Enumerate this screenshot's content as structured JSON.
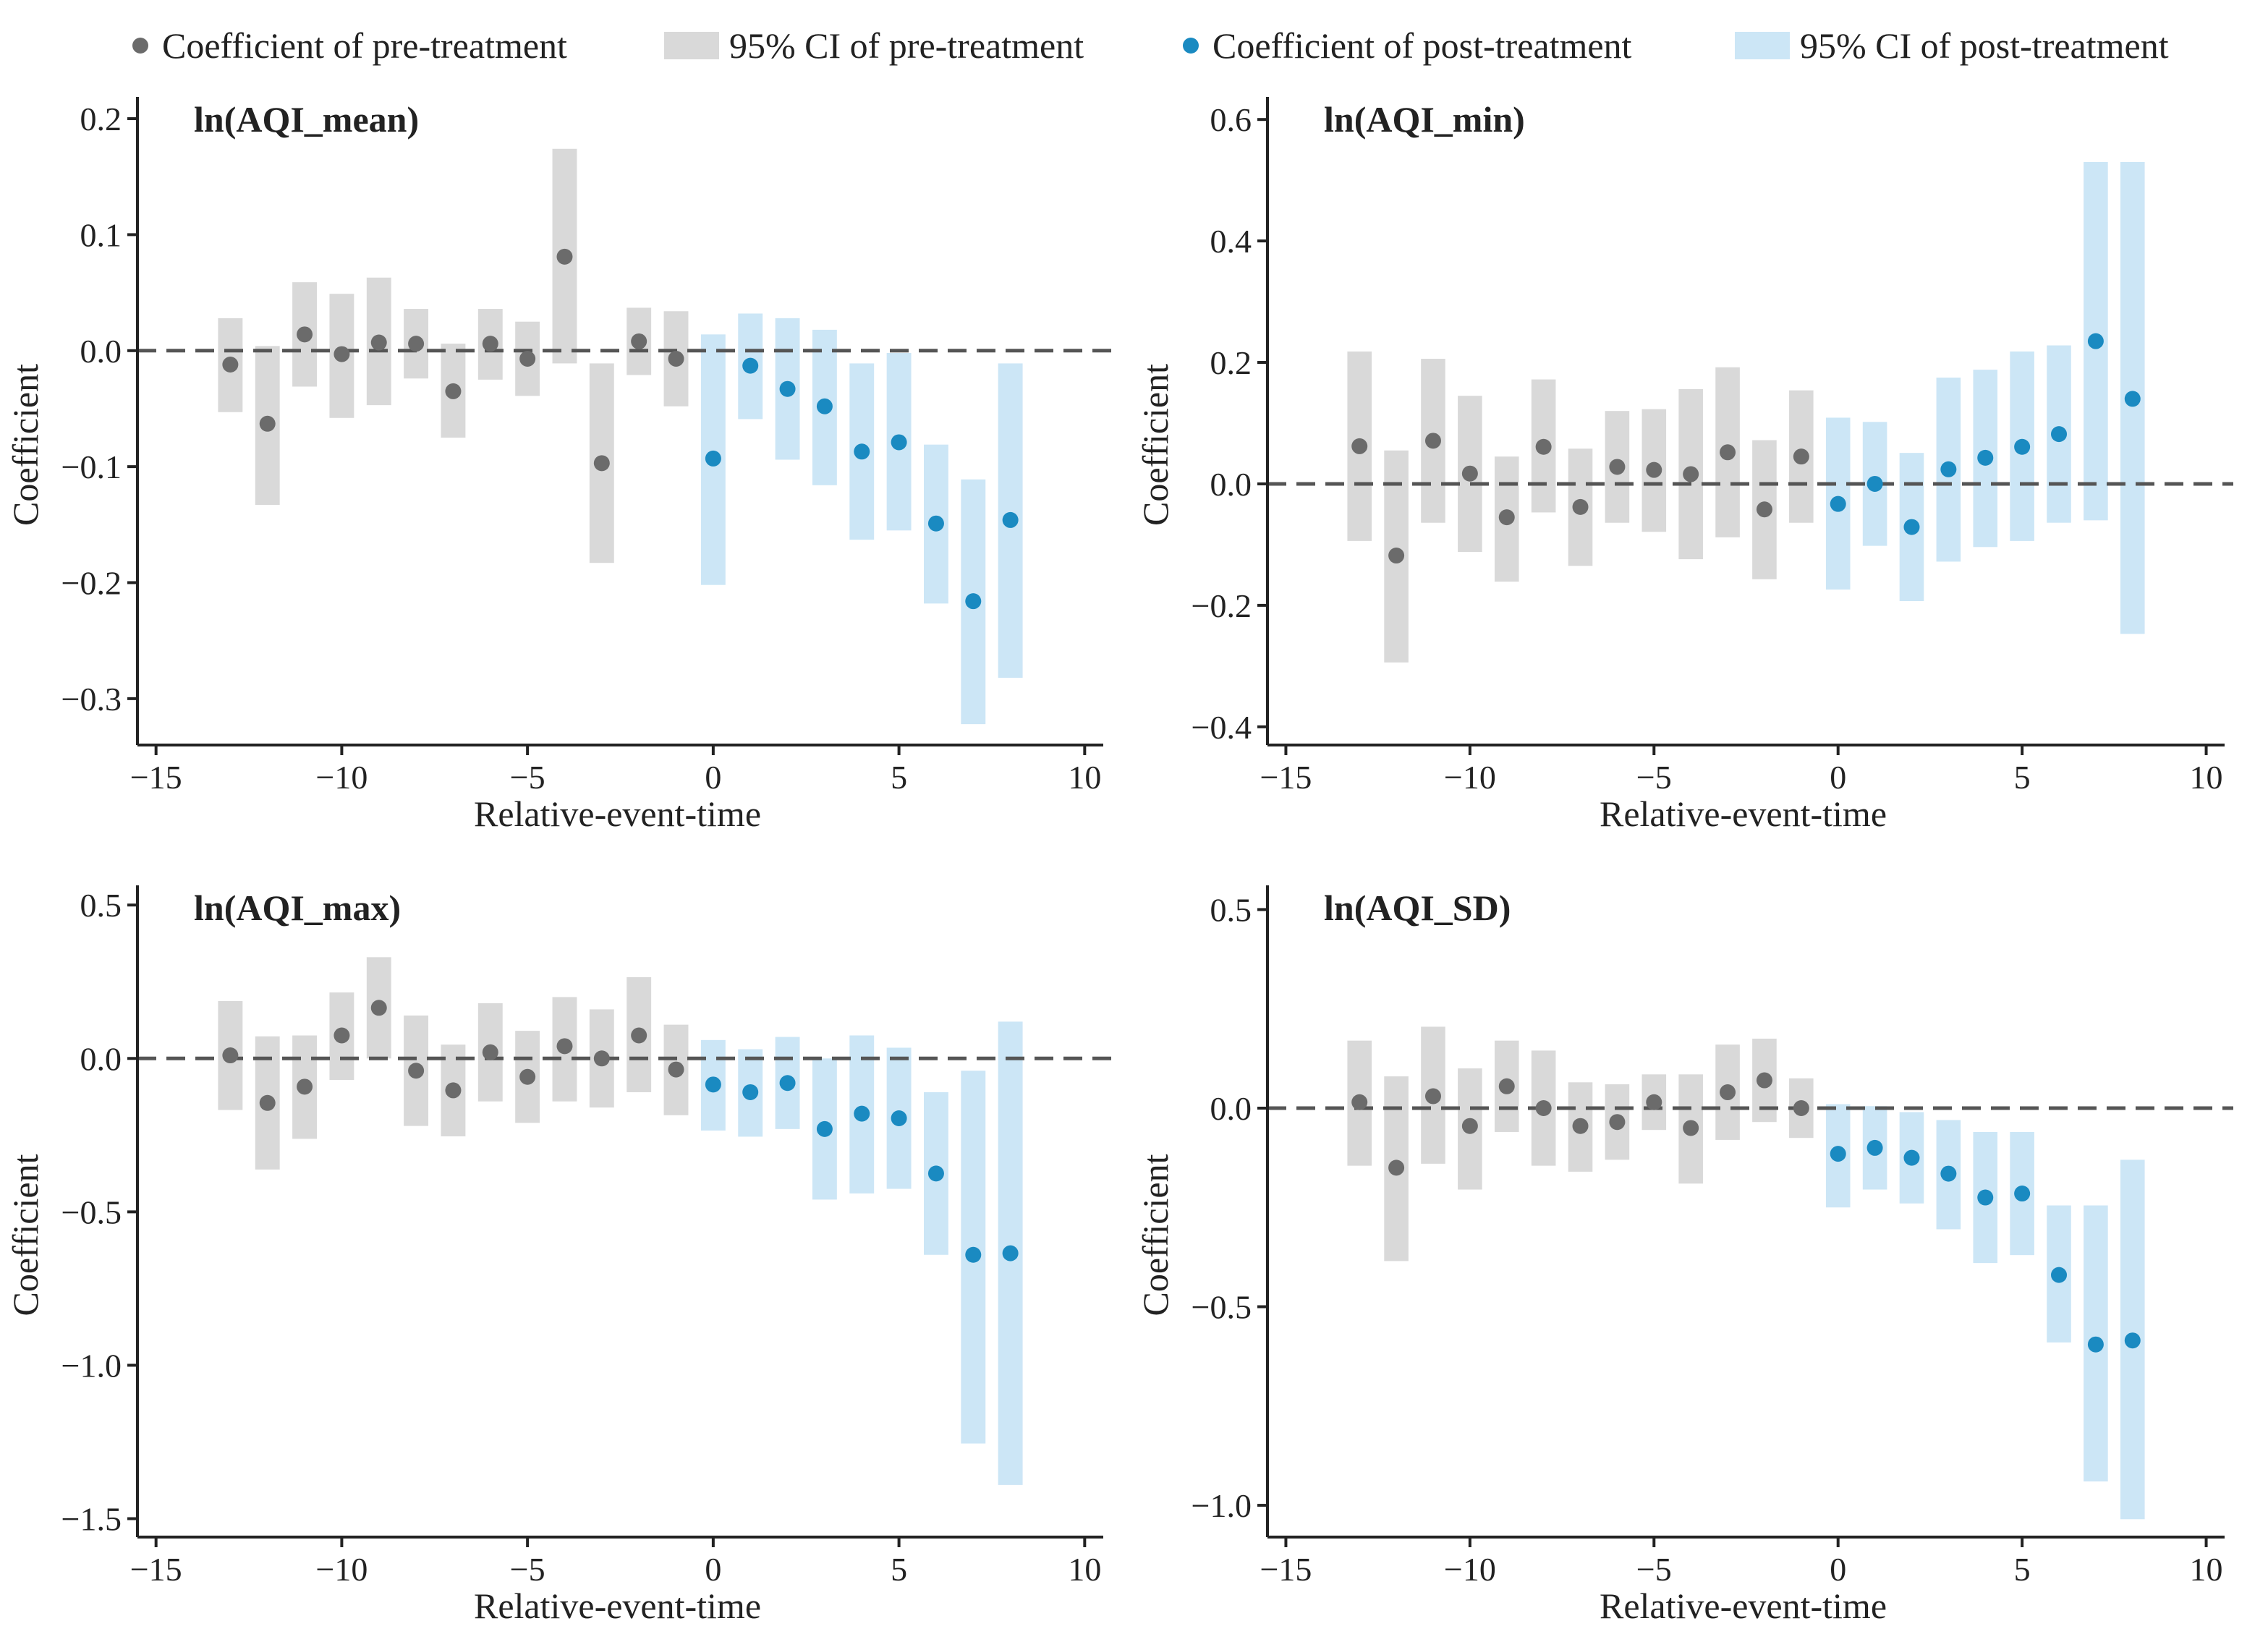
{
  "legend": {
    "pre_coef": "Coefficient of pre-treatment",
    "pre_ci": "95% CI of pre-treatment",
    "post_coef": "Coefficient of post-treatment",
    "post_ci": "95% CI of post-treatment"
  },
  "colors": {
    "pre_point": "#6b6b6b",
    "pre_ci": "#d9d9d9",
    "post_point": "#1a8ac1",
    "post_ci": "#cce6f6",
    "axis": "#222222",
    "zero_line": "#555555"
  },
  "chart_data": [
    {
      "type": "scatter",
      "title": "ln(AQI_mean)",
      "xlabel": "Relative-event-time",
      "ylabel": "Coefficient",
      "xlim": [
        -15.5,
        10.5
      ],
      "ylim": [
        -0.34,
        0.215
      ],
      "xticks": [
        -15,
        -10,
        -5,
        0,
        5,
        10
      ],
      "xtick_labels": [
        "−15",
        "−10",
        "−5",
        "0",
        "5",
        "10"
      ],
      "yticks": [
        0.2,
        0.1,
        0.0,
        -0.1,
        -0.2,
        -0.3
      ],
      "ytick_labels": [
        "0.2",
        "0.1",
        "0.0",
        "−0.1",
        "−0.2",
        "−0.3"
      ],
      "series": [
        {
          "name": "pre-treatment",
          "x": [
            -13,
            -12,
            -11,
            -10,
            -9,
            -8,
            -7,
            -6,
            -5,
            -4,
            -3,
            -2,
            -1
          ],
          "coef": [
            -0.012,
            -0.063,
            0.014,
            -0.003,
            0.007,
            0.006,
            -0.035,
            0.006,
            -0.007,
            0.081,
            -0.097,
            0.008,
            -0.007
          ],
          "ci_low": [
            -0.053,
            -0.133,
            -0.031,
            -0.058,
            -0.047,
            -0.024,
            -0.075,
            -0.025,
            -0.039,
            -0.011,
            -0.183,
            -0.021,
            -0.048
          ],
          "ci_high": [
            0.028,
            0.004,
            0.059,
            0.049,
            0.063,
            0.036,
            0.006,
            0.036,
            0.025,
            0.174,
            -0.011,
            0.037,
            0.034
          ]
        },
        {
          "name": "post-treatment",
          "x": [
            0,
            1,
            2,
            3,
            4,
            5,
            6,
            7,
            8
          ],
          "coef": [
            -0.093,
            -0.013,
            -0.033,
            -0.048,
            -0.087,
            -0.079,
            -0.149,
            -0.216,
            -0.146
          ],
          "ci_low": [
            -0.202,
            -0.059,
            -0.094,
            -0.116,
            -0.163,
            -0.155,
            -0.218,
            -0.322,
            -0.282
          ],
          "ci_high": [
            0.014,
            0.032,
            0.028,
            0.018,
            -0.011,
            -0.002,
            -0.081,
            -0.111,
            -0.011
          ]
        }
      ]
    },
    {
      "type": "scatter",
      "title": "ln(AQI_min)",
      "xlabel": "Relative-event-time",
      "ylabel": "Coefficient",
      "xlim": [
        -15.5,
        10.5
      ],
      "ylim": [
        -0.43,
        0.63
      ],
      "xticks": [
        -15,
        -10,
        -5,
        0,
        5,
        10
      ],
      "xtick_labels": [
        "−15",
        "−10",
        "−5",
        "0",
        "5",
        "10"
      ],
      "yticks": [
        0.6,
        0.4,
        0.2,
        0.0,
        -0.2,
        -0.4
      ],
      "ytick_labels": [
        "0.6",
        "0.4",
        "0.2",
        "0.0",
        "−0.2",
        "−0.4"
      ],
      "series": [
        {
          "name": "pre-treatment",
          "x": [
            -13,
            -12,
            -11,
            -10,
            -9,
            -8,
            -7,
            -6,
            -5,
            -4,
            -3,
            -2,
            -1
          ],
          "coef": [
            0.062,
            -0.118,
            0.071,
            0.017,
            -0.055,
            0.061,
            -0.038,
            0.028,
            0.023,
            0.016,
            0.052,
            -0.042,
            0.045
          ],
          "ci_low": [
            -0.094,
            -0.294,
            -0.064,
            -0.112,
            -0.161,
            -0.047,
            -0.135,
            -0.064,
            -0.079,
            -0.124,
            -0.088,
            -0.157,
            -0.064
          ],
          "ci_high": [
            0.218,
            0.055,
            0.206,
            0.145,
            0.045,
            0.172,
            0.058,
            0.12,
            0.123,
            0.156,
            0.192,
            0.072,
            0.154
          ]
        },
        {
          "name": "post-treatment",
          "x": [
            0,
            1,
            2,
            3,
            4,
            5,
            6,
            7,
            8
          ],
          "coef": [
            -0.033,
            0.0,
            -0.071,
            0.024,
            0.043,
            0.061,
            0.082,
            0.235,
            0.14
          ],
          "ci_low": [
            -0.174,
            -0.102,
            -0.193,
            -0.128,
            -0.104,
            -0.094,
            -0.064,
            -0.06,
            -0.247
          ],
          "ci_high": [
            0.109,
            0.102,
            0.051,
            0.175,
            0.188,
            0.218,
            0.228,
            0.53,
            0.53
          ]
        }
      ]
    },
    {
      "type": "scatter",
      "title": "ln(AQI_max)",
      "xlabel": "Relative-event-time",
      "ylabel": "Coefficient",
      "xlim": [
        -15.5,
        10.5
      ],
      "ylim": [
        -1.56,
        0.55
      ],
      "xticks": [
        -15,
        -10,
        -5,
        0,
        5,
        10
      ],
      "xtick_labels": [
        "−15",
        "−10",
        "−5",
        "0",
        "5",
        "10"
      ],
      "yticks": [
        0.5,
        0.0,
        -0.5,
        -1.0,
        -1.5
      ],
      "ytick_labels": [
        "0.5",
        "0.0",
        "−0.5",
        "−1.0",
        "−1.5"
      ],
      "series": [
        {
          "name": "pre-treatment",
          "x": [
            -13,
            -12,
            -11,
            -10,
            -9,
            -8,
            -7,
            -6,
            -5,
            -4,
            -3,
            -2,
            -1
          ],
          "coef": [
            0.01,
            -0.145,
            -0.092,
            0.075,
            0.165,
            -0.04,
            -0.104,
            0.02,
            -0.06,
            0.04,
            0.0,
            0.075,
            -0.036
          ],
          "ci_low": [
            -0.168,
            -0.362,
            -0.262,
            -0.07,
            0.0,
            -0.22,
            -0.254,
            -0.14,
            -0.21,
            -0.14,
            -0.16,
            -0.11,
            -0.185
          ],
          "ci_high": [
            0.187,
            0.072,
            0.075,
            0.215,
            0.33,
            0.14,
            0.045,
            0.18,
            0.09,
            0.2,
            0.16,
            0.265,
            0.11
          ]
        },
        {
          "name": "post-treatment",
          "x": [
            0,
            1,
            2,
            3,
            4,
            5,
            6,
            7,
            8
          ],
          "coef": [
            -0.085,
            -0.11,
            -0.08,
            -0.23,
            -0.18,
            -0.195,
            -0.375,
            -0.64,
            -0.635
          ],
          "ci_low": [
            -0.235,
            -0.255,
            -0.23,
            -0.46,
            -0.44,
            -0.425,
            -0.64,
            -1.255,
            -1.39
          ],
          "ci_high": [
            0.06,
            0.03,
            0.07,
            0.0,
            0.075,
            0.035,
            -0.11,
            -0.04,
            0.12
          ]
        }
      ]
    },
    {
      "type": "scatter",
      "title": "ln(AQI_SD)",
      "xlabel": "Relative-event-time",
      "ylabel": "Coefficient",
      "xlim": [
        -15.5,
        10.5
      ],
      "ylim": [
        -1.08,
        0.55
      ],
      "xticks": [
        -15,
        -10,
        -5,
        0,
        5,
        10
      ],
      "xtick_labels": [
        "−15",
        "−10",
        "−5",
        "0",
        "5",
        "10"
      ],
      "yticks": [
        0.5,
        0.0,
        -0.5,
        -1.0
      ],
      "ytick_labels": [
        "0.5",
        "0.0",
        "−0.5",
        "−1.0"
      ],
      "series": [
        {
          "name": "pre-treatment",
          "x": [
            -13,
            -12,
            -11,
            -10,
            -9,
            -8,
            -7,
            -6,
            -5,
            -4,
            -3,
            -2,
            -1
          ],
          "coef": [
            0.015,
            -0.15,
            0.03,
            -0.045,
            0.055,
            0.0,
            -0.045,
            -0.035,
            0.015,
            -0.05,
            0.04,
            0.07,
            0.0
          ],
          "ci_low": [
            -0.145,
            -0.385,
            -0.14,
            -0.205,
            -0.06,
            -0.145,
            -0.16,
            -0.13,
            -0.055,
            -0.19,
            -0.08,
            -0.035,
            -0.075
          ],
          "ci_high": [
            0.17,
            0.08,
            0.205,
            0.1,
            0.17,
            0.145,
            0.065,
            0.06,
            0.085,
            0.085,
            0.16,
            0.175,
            0.075
          ]
        },
        {
          "name": "post-treatment",
          "x": [
            0,
            1,
            2,
            3,
            4,
            5,
            6,
            7,
            8
          ],
          "coef": [
            -0.115,
            -0.1,
            -0.125,
            -0.165,
            -0.225,
            -0.215,
            -0.42,
            -0.595,
            -0.585
          ],
          "ci_low": [
            -0.25,
            -0.205,
            -0.24,
            -0.305,
            -0.39,
            -0.37,
            -0.59,
            -0.94,
            -1.035
          ],
          "ci_high": [
            0.01,
            0.005,
            -0.01,
            -0.03,
            -0.06,
            -0.06,
            -0.245,
            -0.245,
            -0.13
          ]
        }
      ]
    }
  ]
}
